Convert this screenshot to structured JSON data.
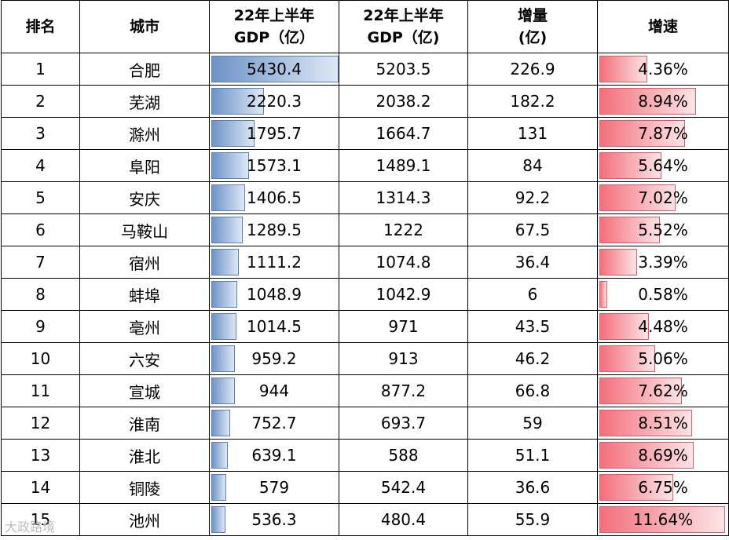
{
  "headers": {
    "rank": "排名",
    "city": "城市",
    "gdp22h1": [
      "22年上半年",
      "GDP（亿）"
    ],
    "gdp21h1": [
      "22年上半年",
      "GDP（亿)"
    ],
    "increase": [
      "增量",
      "(亿)"
    ],
    "growth": "增速"
  },
  "colors": {
    "data_bar": "#6e93c8",
    "growth_bar": "#f36f7c"
  },
  "gdp_bar_max": 5430.4,
  "growth_bar_max": 11.64,
  "rows": [
    {
      "rank": "1",
      "city": "合肥",
      "gdp": "5430.4",
      "gdp_prev": "5203.5",
      "increase": "226.9",
      "growth": "4.36%"
    },
    {
      "rank": "2",
      "city": "芜湖",
      "gdp": "2220.3",
      "gdp_prev": "2038.2",
      "increase": "182.2",
      "growth": "8.94%"
    },
    {
      "rank": "3",
      "city": "滁州",
      "gdp": "1795.7",
      "gdp_prev": "1664.7",
      "increase": "131",
      "growth": "7.87%"
    },
    {
      "rank": "4",
      "city": "阜阳",
      "gdp": "1573.1",
      "gdp_prev": "1489.1",
      "increase": "84",
      "growth": "5.64%"
    },
    {
      "rank": "5",
      "city": "安庆",
      "gdp": "1406.5",
      "gdp_prev": "1314.3",
      "increase": "92.2",
      "growth": "7.02%"
    },
    {
      "rank": "6",
      "city": "马鞍山",
      "gdp": "1289.5",
      "gdp_prev": "1222",
      "increase": "67.5",
      "growth": "5.52%"
    },
    {
      "rank": "7",
      "city": "宿州",
      "gdp": "1111.2",
      "gdp_prev": "1074.8",
      "increase": "36.4",
      "growth": "3.39%"
    },
    {
      "rank": "8",
      "city": "蚌埠",
      "gdp": "1048.9",
      "gdp_prev": "1042.9",
      "increase": "6",
      "growth": "0.58%"
    },
    {
      "rank": "9",
      "city": "亳州",
      "gdp": "1014.5",
      "gdp_prev": "971",
      "increase": "43.5",
      "growth": "4.48%"
    },
    {
      "rank": "10",
      "city": "六安",
      "gdp": "959.2",
      "gdp_prev": "913",
      "increase": "46.2",
      "growth": "5.06%"
    },
    {
      "rank": "11",
      "city": "宣城",
      "gdp": "944",
      "gdp_prev": "877.2",
      "increase": "66.8",
      "growth": "7.62%"
    },
    {
      "rank": "12",
      "city": "淮南",
      "gdp": "752.7",
      "gdp_prev": "693.7",
      "increase": "59",
      "growth": "8.51%"
    },
    {
      "rank": "13",
      "city": "淮北",
      "gdp": "639.1",
      "gdp_prev": "588",
      "increase": "51.1",
      "growth": "8.69%"
    },
    {
      "rank": "14",
      "city": "铜陵",
      "gdp": "579",
      "gdp_prev": "542.4",
      "increase": "36.6",
      "growth": "6.75%"
    },
    {
      "rank": "15",
      "city": "池州",
      "gdp": "536.3",
      "gdp_prev": "480.4",
      "increase": "55.9",
      "growth": "11.64%"
    }
  ],
  "watermark": "大政路境"
}
